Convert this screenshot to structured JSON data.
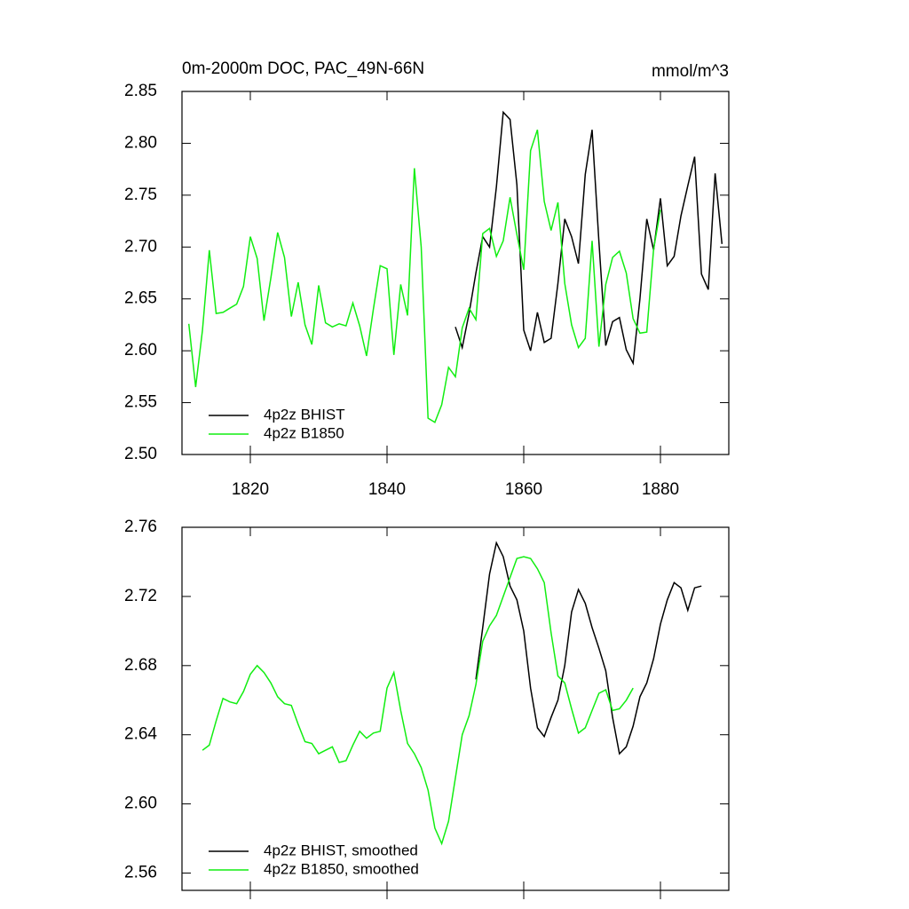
{
  "chart_data": [
    {
      "type": "line",
      "title": "0m-2000m DOC, PAC_49N-66N",
      "units": "mmol/m^3",
      "xlim": [
        1810,
        1890
      ],
      "xticks": [
        1820,
        1840,
        1860,
        1880
      ],
      "ylim": [
        2.5,
        2.85
      ],
      "yticks": [
        {
          "value": 2.5,
          "label": "2.50"
        },
        2.55,
        {
          "value": 2.6,
          "label": "2.60"
        },
        2.65,
        {
          "value": 2.7,
          "label": "2.70"
        },
        2.75,
        {
          "value": 2.8,
          "label": "2.80"
        },
        2.85
      ],
      "series": [
        {
          "name": "4p2z BHIST",
          "color": "#000000",
          "x": [
            1850,
            1851,
            1852,
            1853,
            1854,
            1855,
            1856,
            1857,
            1858,
            1859,
            1860,
            1861,
            1862,
            1863,
            1864,
            1865,
            1866,
            1867,
            1868,
            1869,
            1870,
            1871,
            1872,
            1873,
            1874,
            1875,
            1876,
            1877,
            1878,
            1879,
            1880,
            1881,
            1882,
            1883,
            1884,
            1885,
            1886,
            1887,
            1888,
            1889
          ],
          "values": [
            2.623,
            2.603,
            2.636,
            2.675,
            2.71,
            2.7,
            2.758,
            2.83,
            2.823,
            2.76,
            2.62,
            2.6,
            2.637,
            2.608,
            2.612,
            2.665,
            2.727,
            2.71,
            2.684,
            2.77,
            2.813,
            2.705,
            2.605,
            2.628,
            2.632,
            2.601,
            2.588,
            2.65,
            2.727,
            2.697,
            2.747,
            2.682,
            2.691,
            2.73,
            2.759,
            2.787,
            2.674,
            2.659,
            2.771,
            2.703
          ]
        },
        {
          "name": "4p2z B1850",
          "color": "#11ee11",
          "x": [
            1811,
            1812,
            1813,
            1814,
            1815,
            1816,
            1817,
            1818,
            1819,
            1820,
            1821,
            1822,
            1823,
            1824,
            1825,
            1826,
            1827,
            1828,
            1829,
            1830,
            1831,
            1832,
            1833,
            1834,
            1835,
            1836,
            1837,
            1838,
            1839,
            1840,
            1841,
            1842,
            1843,
            1844,
            1845,
            1846,
            1847,
            1848,
            1849,
            1850,
            1851,
            1852,
            1853,
            1854,
            1855,
            1856,
            1857,
            1858,
            1859,
            1860,
            1861,
            1862,
            1863,
            1864,
            1865,
            1866,
            1867,
            1868,
            1869,
            1870,
            1871,
            1872,
            1873,
            1874,
            1875,
            1876,
            1877,
            1878,
            1879,
            1880
          ],
          "values": [
            2.626,
            2.565,
            2.62,
            2.697,
            2.636,
            2.637,
            2.641,
            2.645,
            2.662,
            2.71,
            2.689,
            2.629,
            2.67,
            2.714,
            2.69,
            2.633,
            2.666,
            2.625,
            2.606,
            2.663,
            2.627,
            2.623,
            2.626,
            2.624,
            2.646,
            2.624,
            2.595,
            2.64,
            2.682,
            2.679,
            2.596,
            2.664,
            2.634,
            2.776,
            2.7,
            2.535,
            2.531,
            2.548,
            2.584,
            2.575,
            2.622,
            2.641,
            2.63,
            2.713,
            2.718,
            2.691,
            2.706,
            2.748,
            2.712,
            2.678,
            2.793,
            2.813,
            2.744,
            2.716,
            2.743,
            2.665,
            2.625,
            2.603,
            2.612,
            2.706,
            2.604,
            2.664,
            2.69,
            2.696,
            2.675,
            2.631,
            2.617,
            2.618,
            2.698,
            2.736
          ]
        }
      ]
    },
    {
      "type": "line",
      "xlim": [
        1810,
        1890
      ],
      "xticks": [
        1820,
        1840,
        1860,
        1880
      ],
      "ylim": [
        2.55,
        2.76
      ],
      "yticks": [
        2.56,
        {
          "value": 2.6,
          "label": "2.60"
        },
        2.64,
        2.68,
        2.72,
        2.76
      ],
      "series": [
        {
          "name": "4p2z BHIST, smoothed",
          "color": "#000000",
          "x": [
            1853,
            1854,
            1855,
            1856,
            1857,
            1858,
            1859,
            1860,
            1861,
            1862,
            1863,
            1864,
            1865,
            1866,
            1867,
            1868,
            1869,
            1870,
            1871,
            1872,
            1873,
            1874,
            1875,
            1876,
            1877,
            1878,
            1879,
            1880,
            1881,
            1882,
            1883,
            1884,
            1885,
            1886
          ],
          "values": [
            2.672,
            2.702,
            2.733,
            2.751,
            2.743,
            2.726,
            2.718,
            2.7,
            2.667,
            2.644,
            2.639,
            2.65,
            2.66,
            2.68,
            2.711,
            2.724,
            2.716,
            2.702,
            2.69,
            2.677,
            2.65,
            2.629,
            2.633,
            2.645,
            2.662,
            2.67,
            2.684,
            2.704,
            2.718,
            2.728,
            2.725,
            2.712,
            2.725,
            2.726
          ]
        },
        {
          "name": "4p2z B1850, smoothed",
          "color": "#11ee11",
          "x": [
            1813,
            1814,
            1815,
            1816,
            1817,
            1818,
            1819,
            1820,
            1821,
            1822,
            1823,
            1824,
            1825,
            1826,
            1827,
            1828,
            1829,
            1830,
            1831,
            1832,
            1833,
            1834,
            1835,
            1836,
            1837,
            1838,
            1839,
            1840,
            1841,
            1842,
            1843,
            1844,
            1845,
            1846,
            1847,
            1848,
            1849,
            1850,
            1851,
            1852,
            1853,
            1854,
            1855,
            1856,
            1857,
            1858,
            1859,
            1860,
            1861,
            1862,
            1863,
            1864,
            1865,
            1866,
            1867,
            1868,
            1869,
            1870,
            1871,
            1872,
            1873,
            1874,
            1875,
            1876
          ],
          "values": [
            2.631,
            2.634,
            2.648,
            2.661,
            2.659,
            2.658,
            2.665,
            2.675,
            2.68,
            2.676,
            2.67,
            2.662,
            2.658,
            2.657,
            2.646,
            2.636,
            2.635,
            2.629,
            2.631,
            2.633,
            2.624,
            2.625,
            2.634,
            2.642,
            2.638,
            2.641,
            2.642,
            2.667,
            2.676,
            2.654,
            2.635,
            2.629,
            2.621,
            2.608,
            2.586,
            2.577,
            2.59,
            2.615,
            2.64,
            2.651,
            2.669,
            2.694,
            2.703,
            2.709,
            2.72,
            2.731,
            2.742,
            2.743,
            2.742,
            2.736,
            2.728,
            2.699,
            2.674,
            2.67,
            2.655,
            2.641,
            2.644,
            2.654,
            2.664,
            2.666,
            2.654,
            2.655,
            2.66,
            2.667
          ]
        }
      ]
    }
  ]
}
